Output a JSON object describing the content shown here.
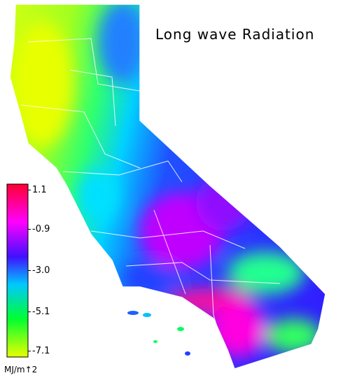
{
  "title": "Long wave Radiation",
  "colorbar": {
    "label": "MJ/m↑2",
    "lim": [
      -7.4,
      1.4
    ],
    "ticks": [
      1.1,
      -0.9,
      {
        "value": -3,
        "label": "-3.0"
      },
      -5.1,
      -7.1
    ]
  }
}
